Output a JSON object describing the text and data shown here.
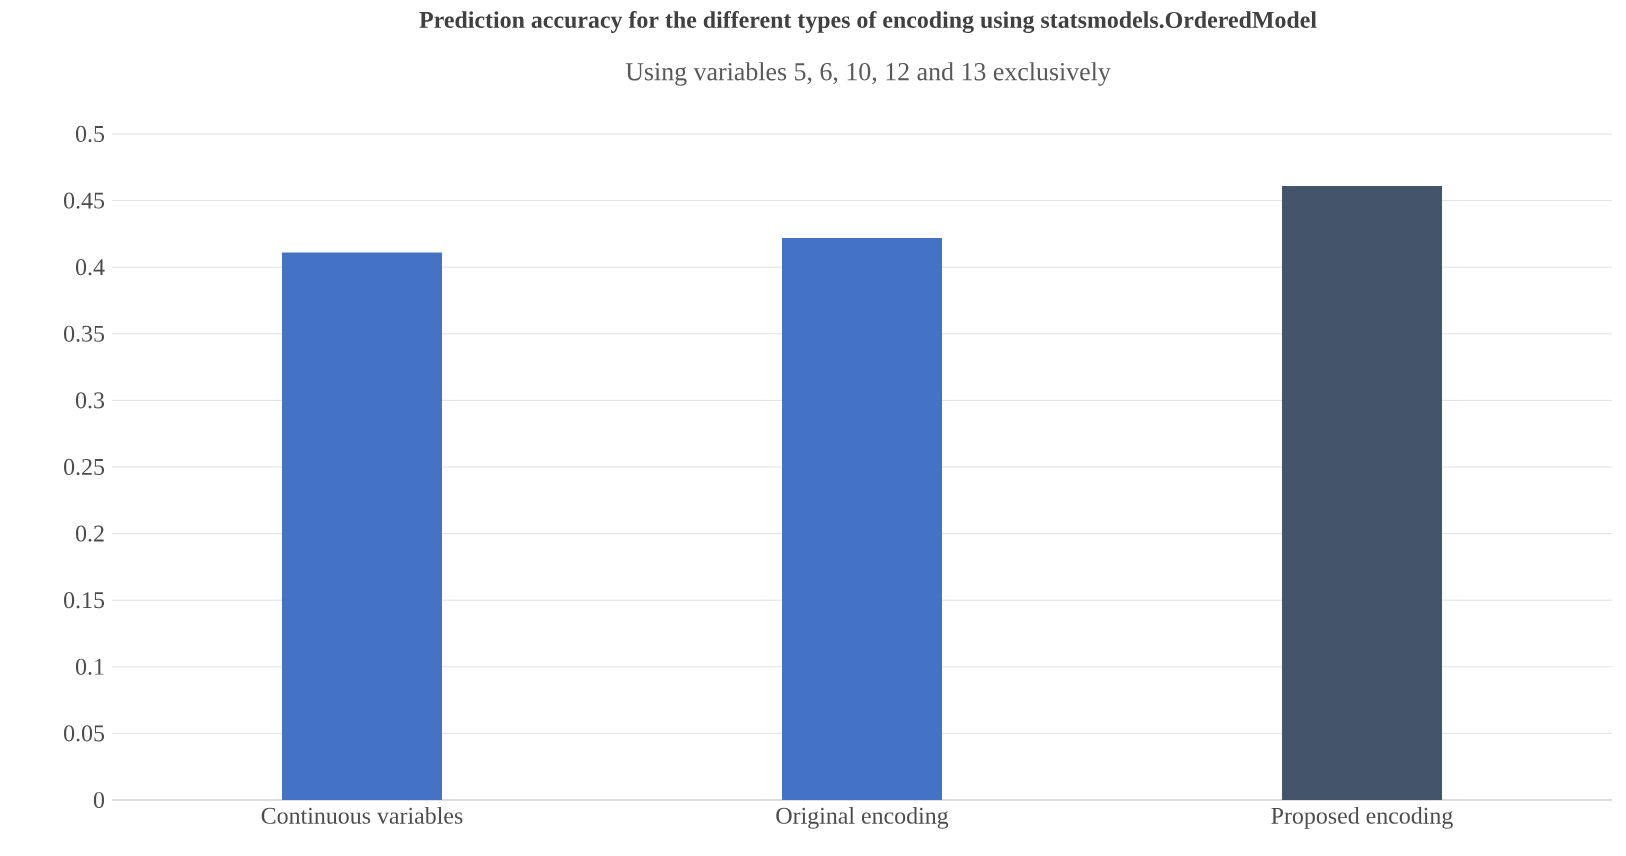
{
  "chart_data": {
    "type": "bar",
    "title": "Prediction accuracy for the different types of encoding using statsmodels.OrderedModel",
    "subtitle": "Using variables 5, 6, 10, 12 and 13 exclusively",
    "categories": [
      "Continuous variables",
      "Original encoding",
      "Proposed encoding"
    ],
    "values": [
      0.411,
      0.422,
      0.461
    ],
    "colors": [
      "#4472c4",
      "#4472c4",
      "#44546a"
    ],
    "ylim": [
      0,
      0.5
    ],
    "yticks": [
      0,
      0.05,
      0.1,
      0.15,
      0.2,
      0.25,
      0.3,
      0.35,
      0.4,
      0.45,
      0.5
    ],
    "grid": "y"
  }
}
